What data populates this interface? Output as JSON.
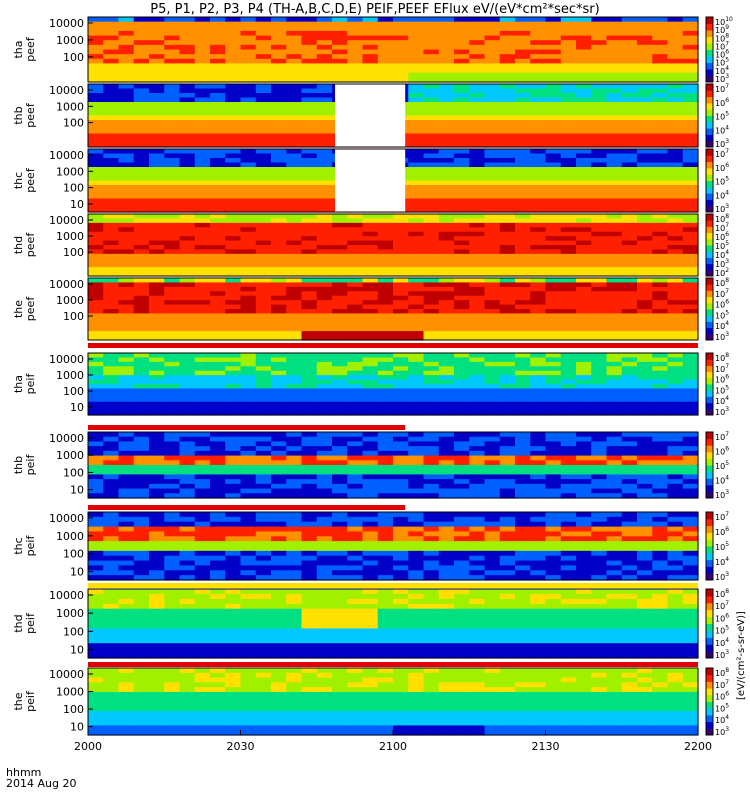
{
  "title": "P5, P1, P2, P3, P4 (TH-A,B,C,D,E) PEIF,PEEF EFlux eV/(eV*cm²*sec*sr)",
  "corner": {
    "time_label": "hhmm",
    "date_label": "2014 Aug 20"
  },
  "chart_data": {
    "type": "heatmap",
    "x_ticks": [
      "2000",
      "2030",
      "2100",
      "2130",
      "2200"
    ],
    "y_ticks": [
      "10000",
      "1000",
      "100",
      "10"
    ],
    "cbar_units": "[eV/(cm²-s-sr-eV)]",
    "colors": {
      "cmap": [
        "#3a0070",
        "#0000c8",
        "#0060ff",
        "#00c8ff",
        "#00e080",
        "#a0f000",
        "#ffe000",
        "#ff9000",
        "#ff2000",
        "#c00000"
      ]
    },
    "panels": [
      {
        "id": "tha-peef",
        "ylabel": [
          "tha",
          "peef"
        ],
        "yticks": [
          "10000",
          "1000",
          "100"
        ],
        "cbar_ticks": [
          "10",
          "9",
          "8",
          "7",
          "6",
          "5",
          "4",
          "3"
        ],
        "cbar_sep": false,
        "gap": null
      },
      {
        "id": "thb-peef",
        "ylabel": [
          "thb",
          "peef"
        ],
        "yticks": [
          "10000",
          "1000",
          "100"
        ],
        "cbar_ticks": [
          "7",
          "6",
          "5",
          "4",
          "3"
        ],
        "cbar_sep": false,
        "gap": [
          0.405,
          0.52
        ]
      },
      {
        "id": "thc-peef",
        "ylabel": [
          "thc",
          "peef"
        ],
        "yticks": [
          "10000",
          "1000",
          "100",
          "10"
        ],
        "cbar_ticks": [
          "7",
          "6",
          "5",
          "4",
          "3"
        ],
        "cbar_sep": false,
        "gap": [
          0.405,
          0.52
        ]
      },
      {
        "id": "thd-peef",
        "ylabel": [
          "thd",
          "peef"
        ],
        "yticks": [
          "10000",
          "1000",
          "100"
        ],
        "cbar_ticks": [
          "8",
          "7",
          "6",
          "5",
          "4",
          "3",
          "2"
        ],
        "cbar_sep": false,
        "gap": null
      },
      {
        "id": "the-peef",
        "ylabel": [
          "the",
          "peef"
        ],
        "yticks": [
          "10000",
          "1000",
          "100"
        ],
        "cbar_ticks": [
          "8",
          "7",
          "6",
          "5",
          "4",
          "3"
        ],
        "cbar_sep": true,
        "gap": null
      },
      {
        "id": "tha-peif",
        "ylabel": [
          "tha",
          "peif"
        ],
        "yticks": [
          "10000",
          "1000",
          "100",
          "10"
        ],
        "cbar_ticks": [
          "8",
          "7",
          "6",
          "5",
          "4",
          "3"
        ],
        "cbar_sep": true,
        "gap": null
      },
      {
        "id": "thb-peif",
        "ylabel": [
          "thb",
          "peif"
        ],
        "yticks": [
          "10000",
          "1000",
          "100",
          "10"
        ],
        "cbar_ticks": [
          "7",
          "6",
          "5",
          "4",
          "3"
        ],
        "cbar_sep": true,
        "gap": null
      },
      {
        "id": "thc-peif",
        "ylabel": [
          "thc",
          "peif"
        ],
        "yticks": [
          "10000",
          "1000",
          "100",
          "10"
        ],
        "cbar_ticks": [
          "7",
          "6",
          "5",
          "4",
          "3"
        ],
        "cbar_sep": true,
        "gap": null
      },
      {
        "id": "thd-peif",
        "ylabel": [
          "thd",
          "peif"
        ],
        "yticks": [
          "10000",
          "1000",
          "100",
          "10"
        ],
        "cbar_ticks": [
          "8",
          "7",
          "6",
          "5",
          "4",
          "3"
        ],
        "cbar_sep": true,
        "gap": null
      },
      {
        "id": "the-peif",
        "ylabel": [
          "the",
          "peif"
        ],
        "yticks": [
          "10000",
          "1000",
          "100",
          "10"
        ],
        "cbar_ticks": [
          "8",
          "7",
          "6",
          "5",
          "4",
          "3"
        ],
        "cbar_sep": false,
        "gap": null
      }
    ]
  }
}
